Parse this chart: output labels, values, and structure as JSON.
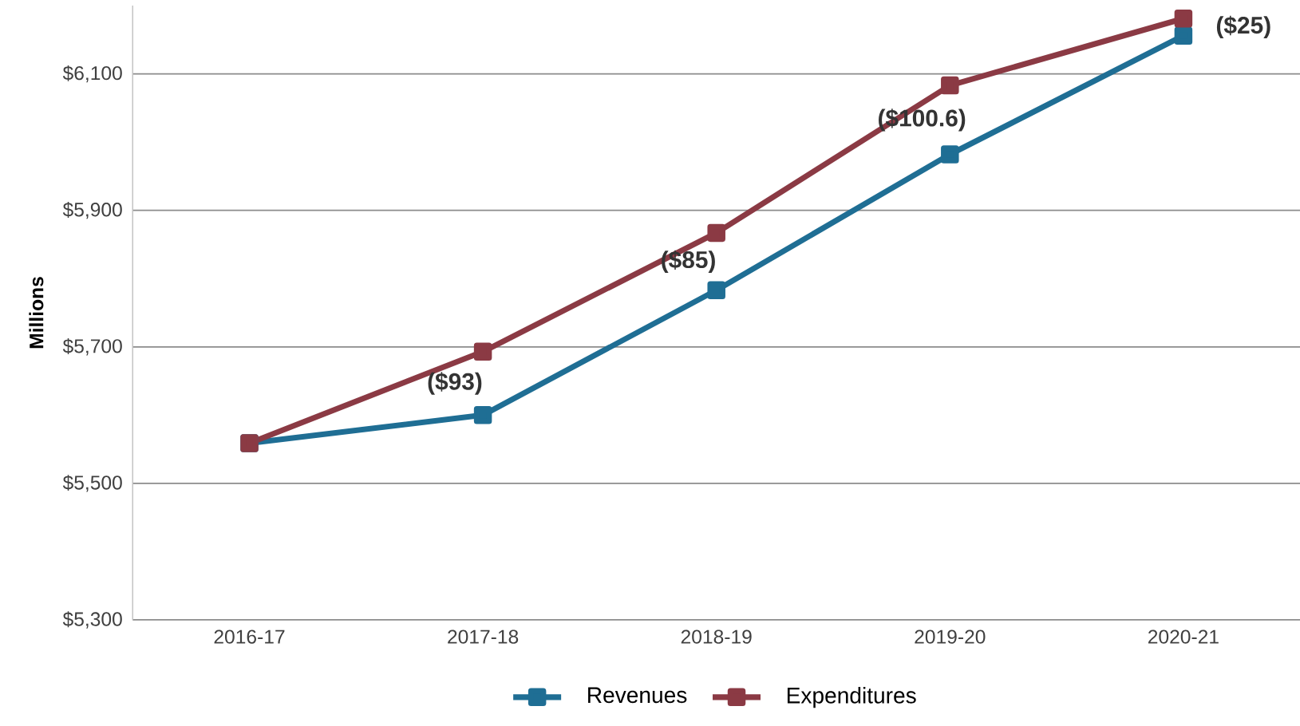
{
  "chart_data": {
    "type": "line",
    "ylabel": "Millions",
    "categories": [
      "2016-17",
      "2017-18",
      "2018-19",
      "2019-20",
      "2020-21"
    ],
    "series": [
      {
        "name": "Revenues",
        "color": "#1f6e94",
        "values": [
          5559,
          5600,
          5783,
          5982,
          6156
        ]
      },
      {
        "name": "Expenditures",
        "color": "#8b3a44",
        "values": [
          5559,
          5693,
          5867,
          6083,
          6181
        ]
      }
    ],
    "ylim": [
      5300,
      6200
    ],
    "yticks": [
      {
        "value": 5300,
        "label": "$5,300"
      },
      {
        "value": 5500,
        "label": "$5,500"
      },
      {
        "value": 5700,
        "label": "$5,700"
      },
      {
        "value": 5900,
        "label": "$5,900"
      },
      {
        "value": 6100,
        "label": "$6,100"
      }
    ],
    "annotations": [
      "($93)",
      "($85)",
      "($100.6)",
      "($25)"
    ],
    "grid": "y",
    "legend": "bottom",
    "marker": "square",
    "line_style": "solid"
  }
}
